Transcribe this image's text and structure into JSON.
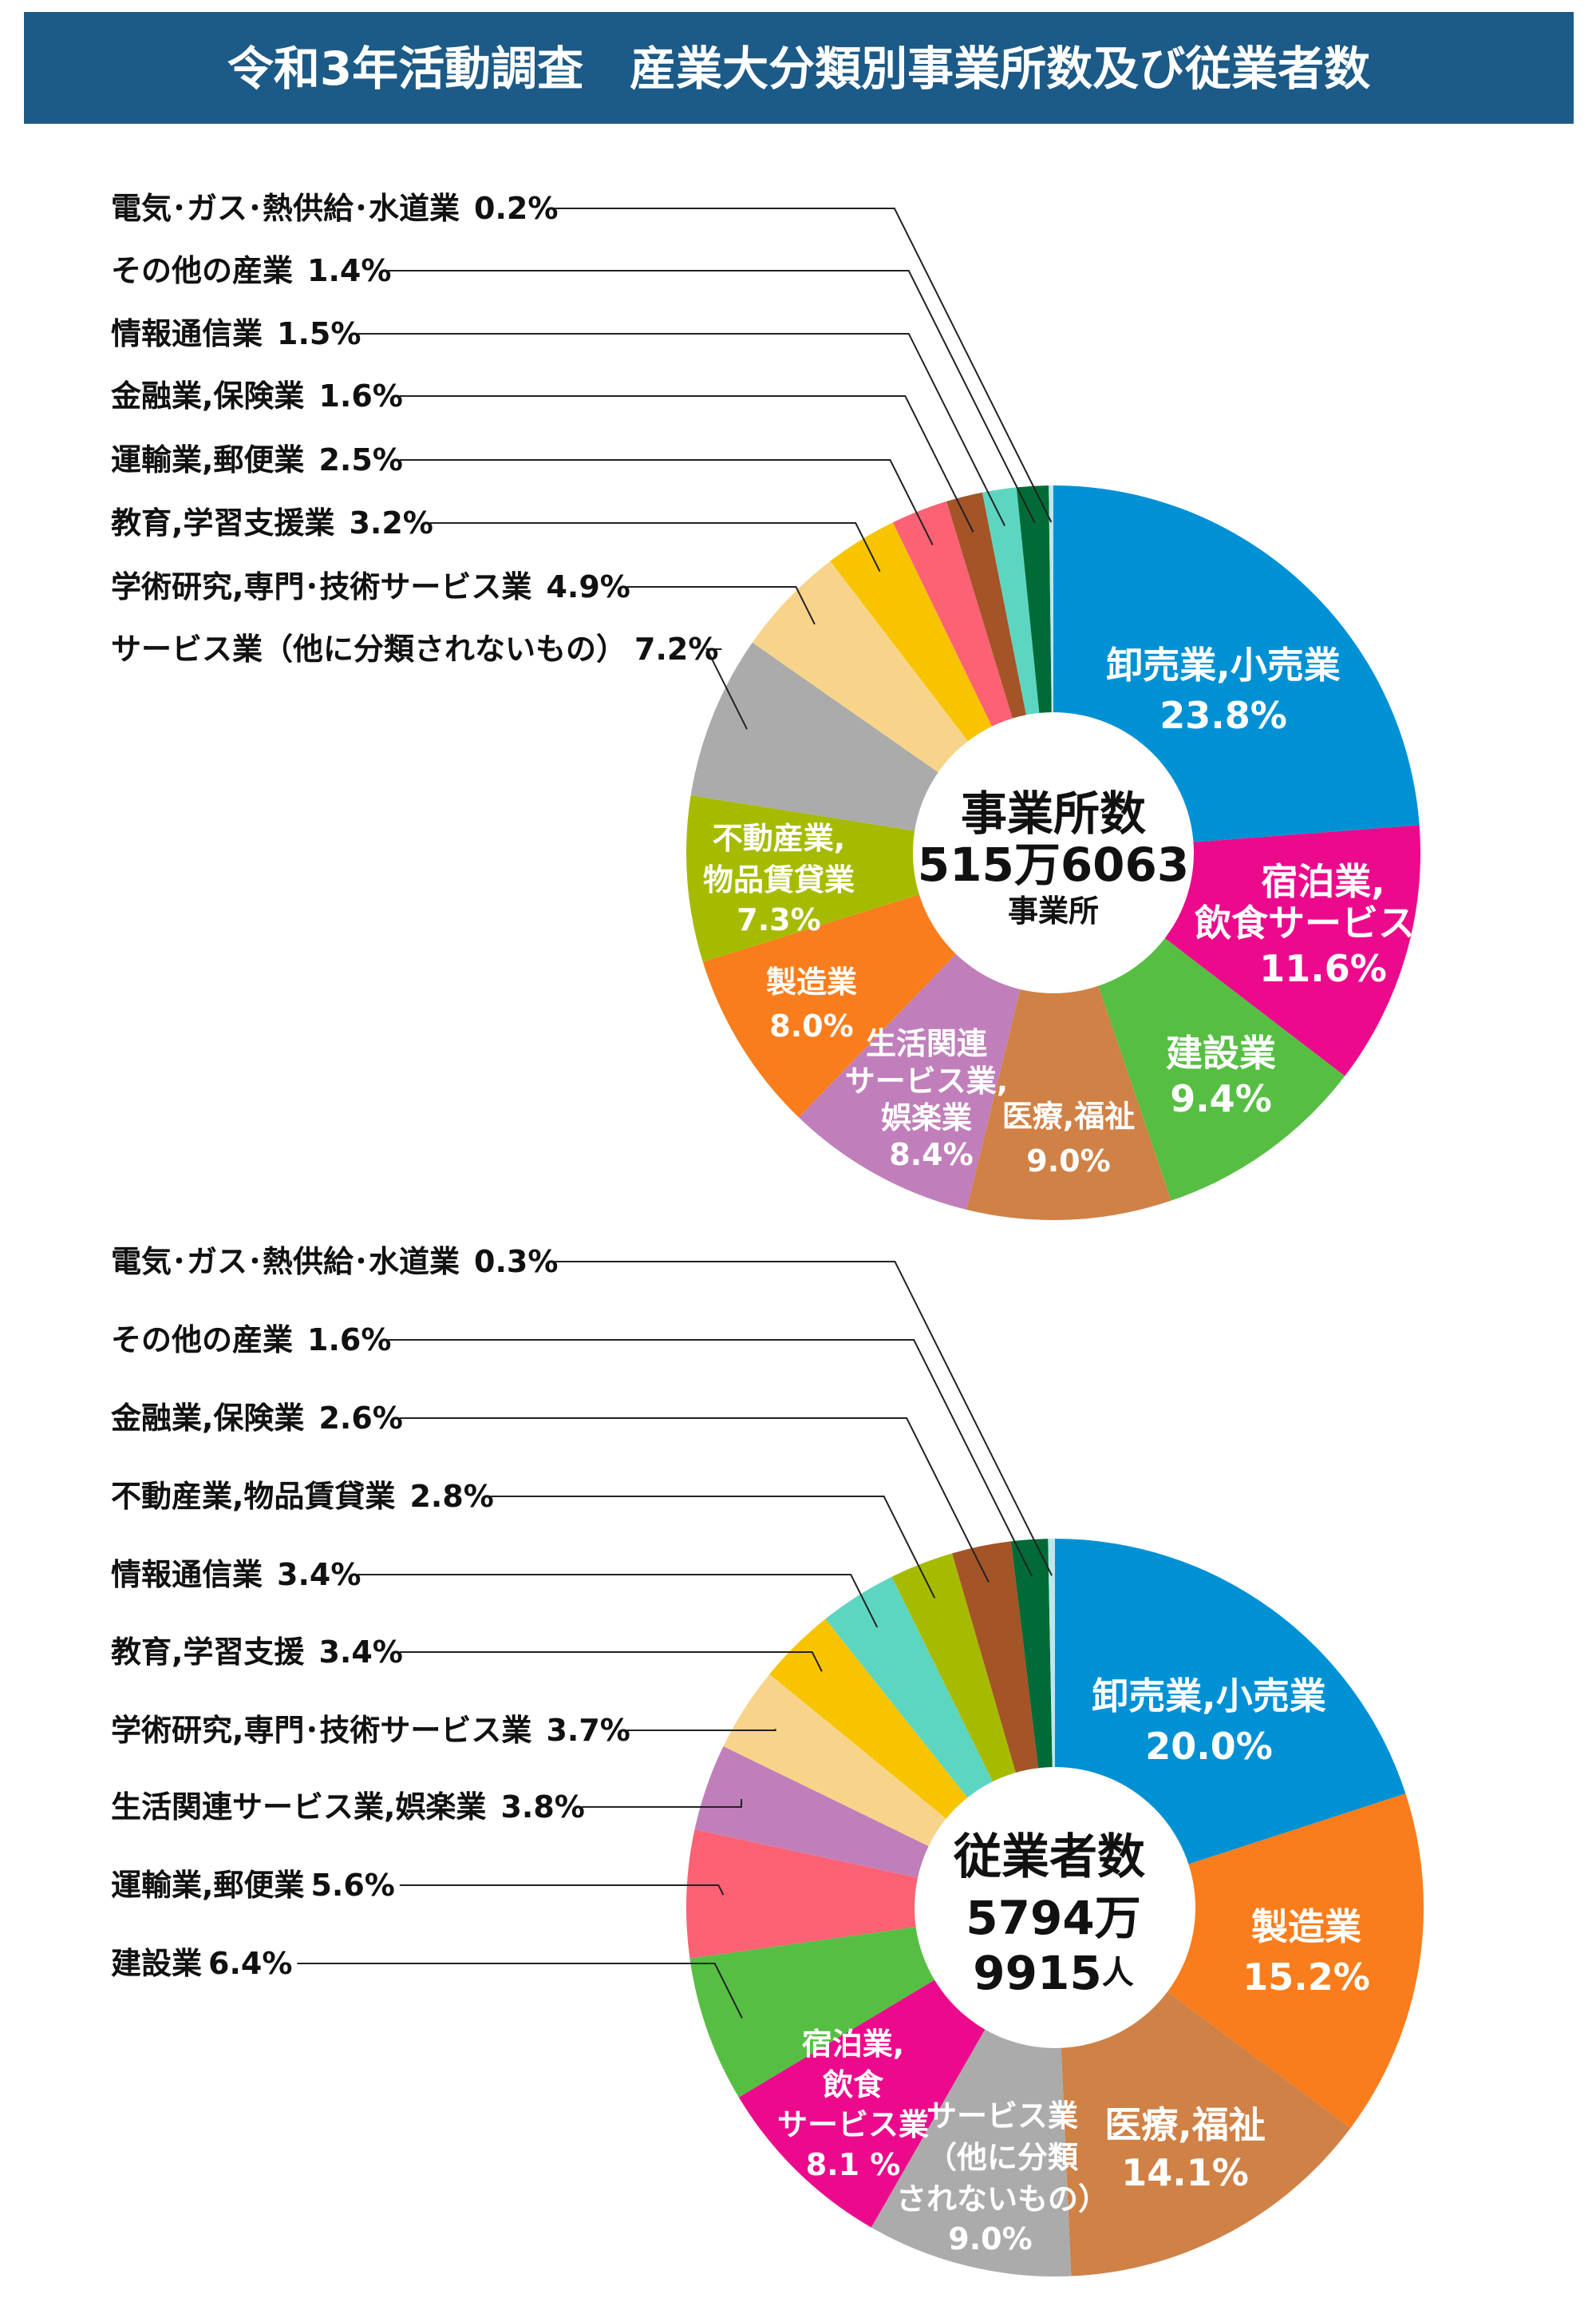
{
  "title": "令和3年活動調査　産業大分類別事業所数及び従業者数",
  "chart_data": [
    {
      "type": "pie",
      "title": "事業所数",
      "center_label": {
        "heading": "事業所数",
        "value": "515万6063",
        "unit": "事業所"
      },
      "slices": [
        {
          "name": "卸売業,小売業",
          "value": 23.8,
          "color": "#0091d5"
        },
        {
          "name": "宿泊業,飲食サービス業",
          "value": 11.6,
          "color": "#ec0a8c"
        },
        {
          "name": "建設業",
          "value": 9.4,
          "color": "#56bf43"
        },
        {
          "name": "医療,福祉",
          "value": 9.0,
          "color": "#d08146"
        },
        {
          "name": "生活関連サービス業,娯楽業",
          "value": 8.4,
          "color": "#c07fba"
        },
        {
          "name": "製造業",
          "value": 8.0,
          "color": "#f97d1c"
        },
        {
          "name": "不動産業,物品賃貸業",
          "value": 7.3,
          "color": "#a6bb00"
        },
        {
          "name": "サービス業（他に分類されないもの）",
          "value": 7.2,
          "color": "#ababab"
        },
        {
          "name": "学術研究,専門・技術サービス業",
          "value": 4.9,
          "color": "#f8d48b"
        },
        {
          "name": "教育,学習支援業",
          "value": 3.2,
          "color": "#f8c400"
        },
        {
          "name": "運輸業,郵便業",
          "value": 2.5,
          "color": "#fc6174"
        },
        {
          "name": "金融業,保険業",
          "value": 1.6,
          "color": "#a45427"
        },
        {
          "name": "情報通信業",
          "value": 1.5,
          "color": "#5dd6c1"
        },
        {
          "name": "その他の産業",
          "value": 1.4,
          "color": "#006b36"
        },
        {
          "name": "電気・ガス・熱供給・水道業",
          "value": 0.2,
          "color": "#bfe6ec"
        }
      ],
      "inner_labels": [
        {
          "lines": [
            "卸売業,小売業",
            "23.8%"
          ]
        },
        {
          "lines": [
            "宿泊業,",
            "飲食サービス業",
            "11.6%"
          ]
        },
        {
          "lines": [
            "建設業",
            "9.4%"
          ]
        },
        {
          "lines": [
            "医療,福祉",
            "9.0%"
          ]
        },
        {
          "lines": [
            "生活関連",
            "サービス業,",
            "娯楽業",
            "8.4%"
          ]
        },
        {
          "lines": [
            "製造業",
            "8.0%"
          ]
        },
        {
          "lines": [
            "不動産業,",
            "物品賃貸業",
            "7.3%"
          ]
        }
      ],
      "outer_labels": [
        {
          "label": "電気･ガス･熱供給･水道業",
          "pct": "0.2%",
          "slice": 14
        },
        {
          "label": "その他の産業",
          "pct": "1.4%",
          "slice": 13
        },
        {
          "label": "情報通信業",
          "pct": "1.5%",
          "slice": 12
        },
        {
          "label": "金融業,保険業",
          "pct": "1.6%",
          "slice": 11
        },
        {
          "label": "運輸業,郵便業",
          "pct": "2.5%",
          "slice": 10
        },
        {
          "label": "教育,学習支援業",
          "pct": "3.2%",
          "slice": 9
        },
        {
          "label": "学術研究,専門･技術サービス業",
          "pct": "4.9%",
          "slice": 8
        },
        {
          "label": "サービス業（他に分類されないもの）",
          "pct": "7.2%",
          "slice": 7
        }
      ]
    },
    {
      "type": "pie",
      "title": "従業者数",
      "center_label": {
        "heading": "従業者数",
        "value": "5794万",
        "value2": "9915",
        "unit": "人"
      },
      "slices": [
        {
          "name": "卸売業,小売業",
          "value": 20.0,
          "color": "#0091d5"
        },
        {
          "name": "製造業",
          "value": 15.2,
          "color": "#f97d1c"
        },
        {
          "name": "医療,福祉",
          "value": 14.1,
          "color": "#d08146"
        },
        {
          "name": "サービス業（他に分類されないもの）",
          "value": 9.0,
          "color": "#ababab"
        },
        {
          "name": "宿泊業,飲食サービス業",
          "value": 8.1,
          "color": "#ec0a8c"
        },
        {
          "name": "建設業",
          "value": 6.4,
          "color": "#56bf43"
        },
        {
          "name": "運輸業,郵便業",
          "value": 5.6,
          "color": "#fc6174"
        },
        {
          "name": "生活関連サービス業,娯楽業",
          "value": 3.8,
          "color": "#c07fba"
        },
        {
          "name": "学術研究,専門・技術サービス業",
          "value": 3.7,
          "color": "#f8d48b"
        },
        {
          "name": "教育,学習支援",
          "value": 3.4,
          "color": "#f8c400"
        },
        {
          "name": "情報通信業",
          "value": 3.4,
          "color": "#5dd6c1"
        },
        {
          "name": "不動産業,物品賃貸業",
          "value": 2.8,
          "color": "#a6bb00"
        },
        {
          "name": "金融業,保険業",
          "value": 2.6,
          "color": "#a45427"
        },
        {
          "name": "その他の産業",
          "value": 1.6,
          "color": "#006b36"
        },
        {
          "name": "電気・ガス・熱供給・水道業",
          "value": 0.3,
          "color": "#bfe6ec"
        }
      ],
      "inner_labels": [
        {
          "lines": [
            "卸売業,小売業",
            "20.0%"
          ]
        },
        {
          "lines": [
            "製造業",
            "15.2%"
          ]
        },
        {
          "lines": [
            "医療,福祉",
            "14.1%"
          ]
        },
        {
          "lines": [
            "サービス業",
            "（他に分類",
            "されないもの）",
            "9.0%"
          ]
        },
        {
          "lines": [
            "宿泊業,",
            "飲食",
            "サービス業",
            "8.1 %"
          ]
        }
      ],
      "outer_labels": [
        {
          "label": "電気･ガス･熱供給･水道業",
          "pct": "0.3%",
          "slice": 14
        },
        {
          "label": "その他の産業",
          "pct": "1.6%",
          "slice": 13
        },
        {
          "label": "金融業,保険業",
          "pct": "2.6%",
          "slice": 12
        },
        {
          "label": "不動産業,物品賃貸業",
          "pct": "2.8%",
          "slice": 11
        },
        {
          "label": "情報通信業",
          "pct": "3.4%",
          "slice": 10
        },
        {
          "label": "教育,学習支援",
          "pct": "3.4%",
          "slice": 9
        },
        {
          "label": "学術研究,専門･技術サービス業",
          "pct": "3.7%",
          "slice": 8
        },
        {
          "label": "生活関連サービス業,娯楽業",
          "pct": "3.8%",
          "slice": 7
        },
        {
          "label": "運輸業,郵便業",
          "pct": "5.6%",
          "slice": 6
        },
        {
          "label": "建設業",
          "pct": "6.4%",
          "slice": 5
        }
      ]
    }
  ]
}
